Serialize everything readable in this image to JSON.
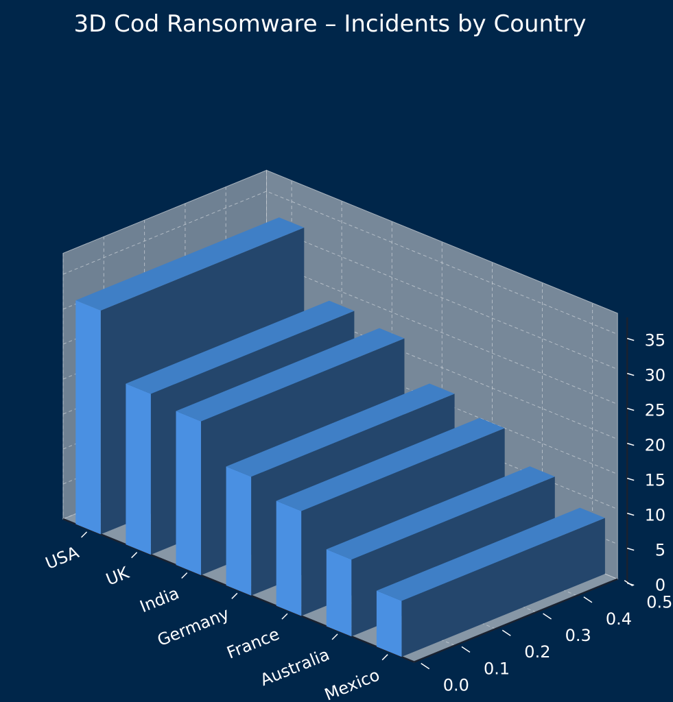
{
  "chart_data": {
    "type": "bar",
    "title": "3D Cod Ransomware – Incidents by Country",
    "categories": [
      "USA",
      "UK",
      "India",
      "Germany",
      "France",
      "Australia",
      "Mexico"
    ],
    "values": [
      32,
      23,
      22,
      17,
      15,
      11,
      8
    ],
    "xlabel": "",
    "ylabel": "",
    "zlabel": "",
    "zlim": [
      0,
      38
    ],
    "z_ticks": [
      0,
      5,
      10,
      15,
      20,
      25,
      30,
      35
    ],
    "y_ticks": [
      "0.0",
      "0.1",
      "0.2",
      "0.3",
      "0.4",
      "0.5"
    ],
    "grid": true,
    "colors": {
      "background": "#00264a",
      "pane": "#778899",
      "bar_front": "#4a90e2",
      "bar_top": "#3f7fc6",
      "bar_side": "#24466c",
      "grid": "#c8cfd6",
      "text": "#ffffff"
    }
  }
}
